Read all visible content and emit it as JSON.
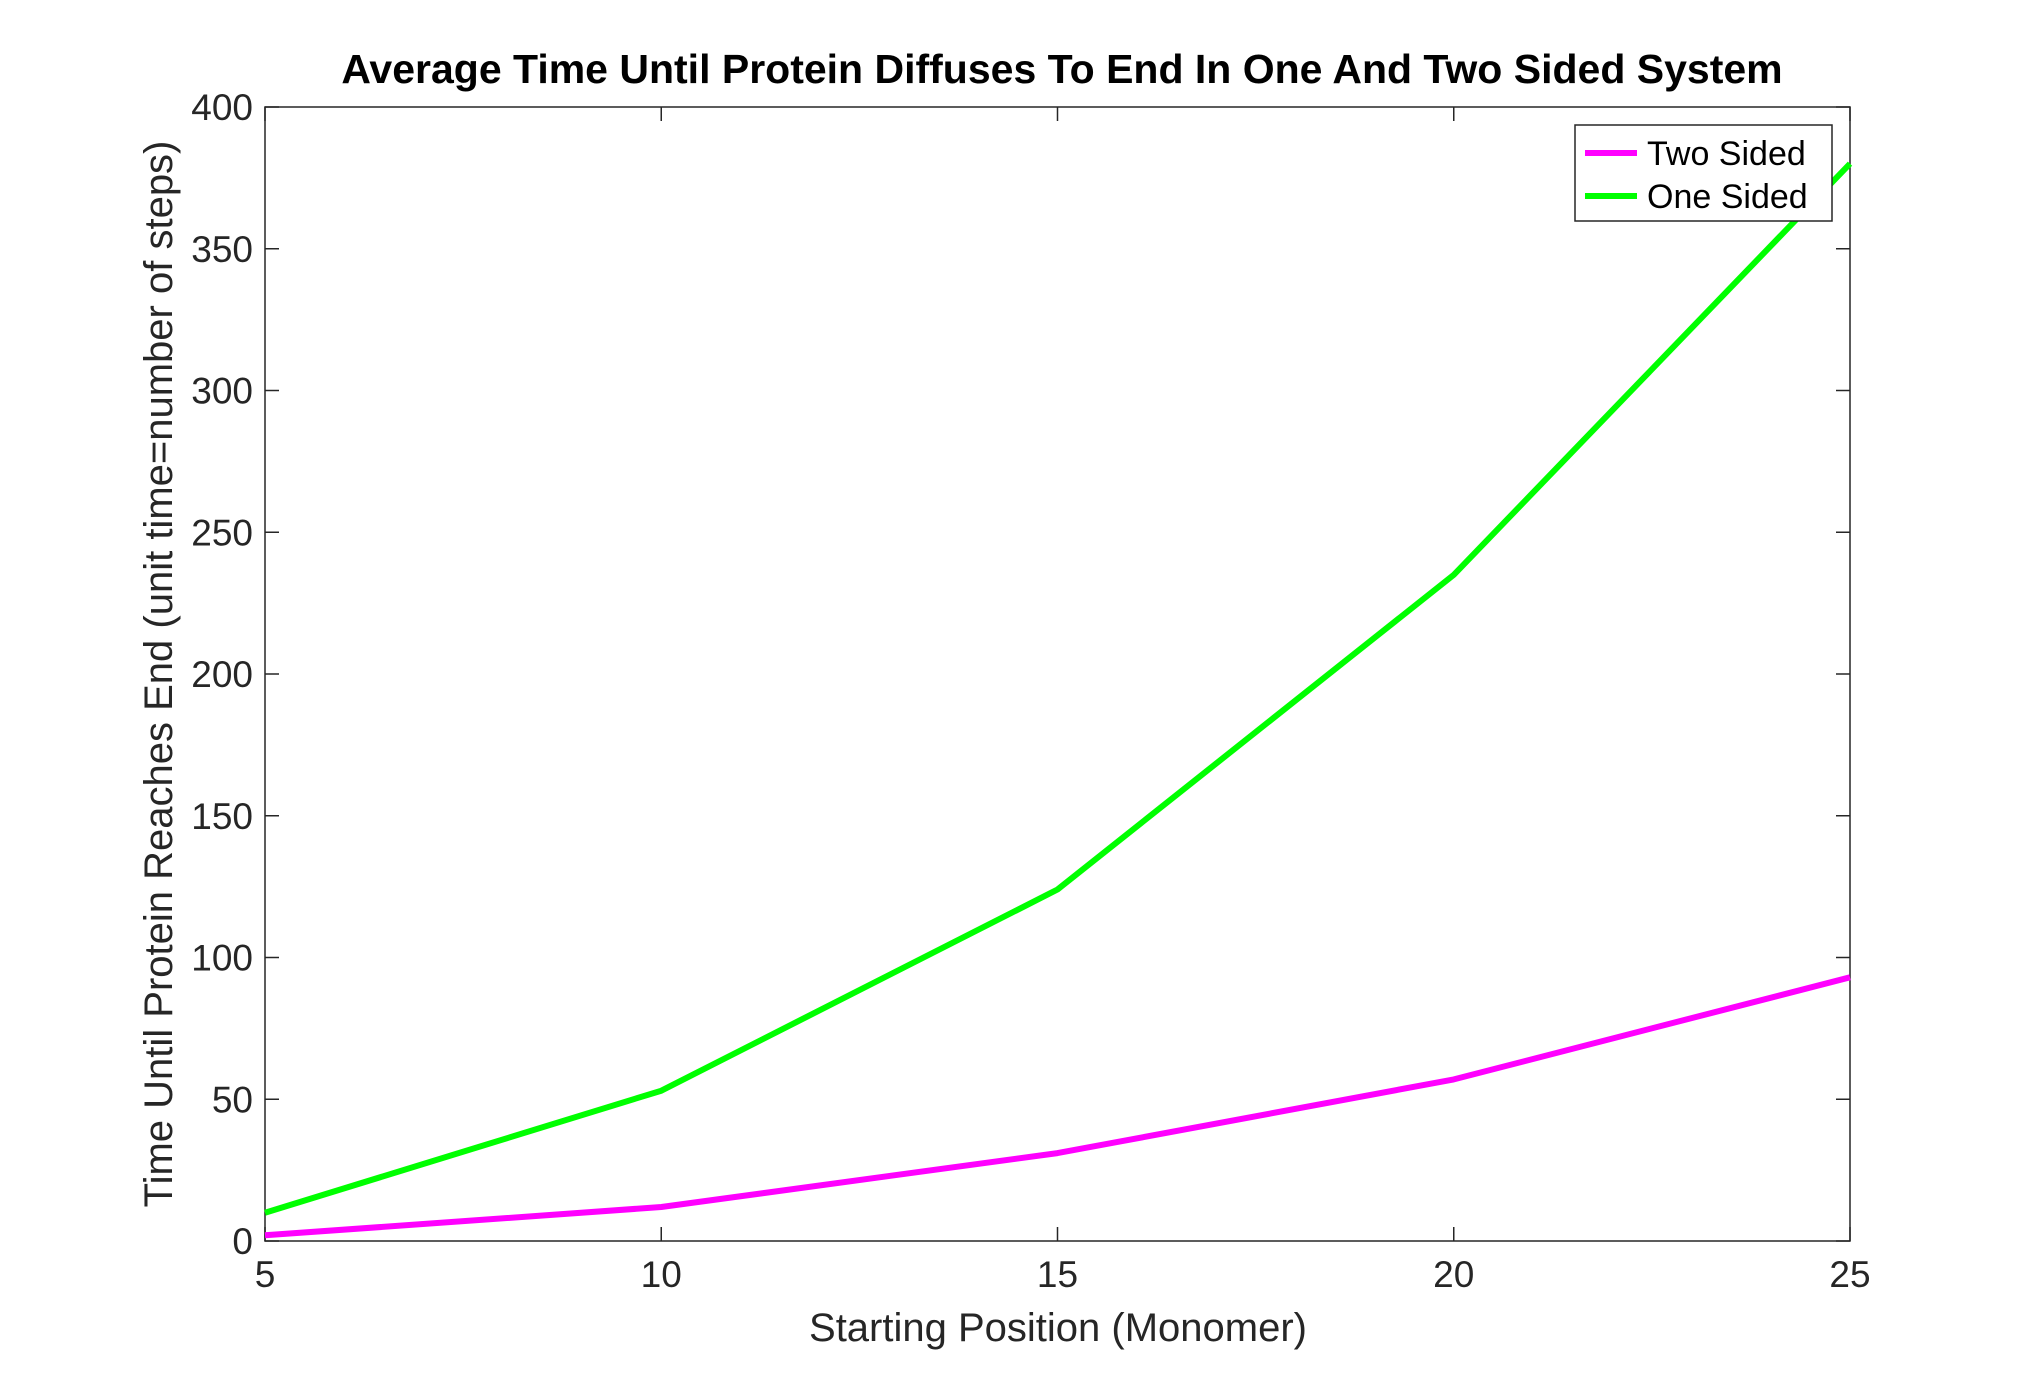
{
  "chart_data": {
    "type": "line",
    "title": "Average Time Until Protein Diffuses To End In One And Two Sided System",
    "xlabel": "Starting Position (Monomer)",
    "ylabel": "Time Until Protein Reaches End (unit time=number of steps)",
    "xlim": [
      5,
      25
    ],
    "ylim": [
      0,
      400
    ],
    "xticks": [
      "5",
      "10",
      "15",
      "20",
      "25"
    ],
    "yticks": [
      "0",
      "50",
      "100",
      "150",
      "200",
      "250",
      "300",
      "350",
      "400"
    ],
    "x": [
      5,
      10,
      15,
      20,
      25
    ],
    "grid": false,
    "legend_position": "top-right",
    "series": [
      {
        "name": "Two Sided",
        "color": "#ff00ff",
        "values": [
          2,
          12,
          31,
          57,
          93
        ]
      },
      {
        "name": "One Sided",
        "color": "#00ff00",
        "values": [
          10,
          53,
          124,
          235,
          380
        ]
      }
    ]
  }
}
